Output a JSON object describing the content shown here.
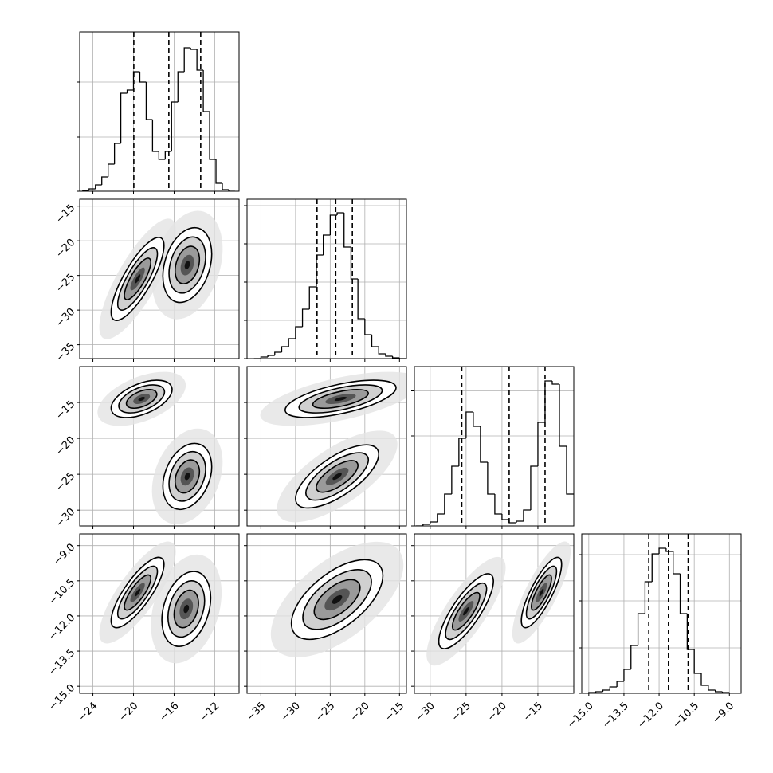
{
  "chart_data": {
    "type": "corner",
    "grid": true,
    "params": [
      {
        "lim": [
          -25.3,
          -9.6
        ],
        "ticks": [
          {
            "value": -24,
            "label": "−24"
          },
          {
            "value": -20,
            "label": "−20"
          },
          {
            "value": -16,
            "label": "−16"
          },
          {
            "value": -12,
            "label": "−12"
          }
        ]
      },
      {
        "lim": [
          -37,
          -14
        ],
        "ticks": [
          {
            "value": -35,
            "label": "−35"
          },
          {
            "value": -30,
            "label": "−30"
          },
          {
            "value": -25,
            "label": "−25"
          },
          {
            "value": -20,
            "label": "−20"
          },
          {
            "value": -15,
            "label": "−15"
          }
        ]
      },
      {
        "lim": [
          -32.2,
          -10
        ],
        "ticks": [
          {
            "value": -30,
            "label": "−30"
          },
          {
            "value": -25,
            "label": "−25"
          },
          {
            "value": -20,
            "label": "−20"
          },
          {
            "value": -15,
            "label": "−15"
          }
        ]
      },
      {
        "lim": [
          -15.3,
          -8.5
        ],
        "ticks": [
          {
            "value": -15,
            "label": "−15.0"
          },
          {
            "value": -13.5,
            "label": "−13.5"
          },
          {
            "value": -12,
            "label": "−12.0"
          },
          {
            "value": -10.5,
            "label": "−10.5"
          },
          {
            "value": -9,
            "label": "−9.0"
          }
        ]
      }
    ],
    "hists": [
      {
        "bins": [
          -25,
          -24.375,
          -23.75,
          -23.125,
          -22.5,
          -21.875,
          -21.25,
          -20.625,
          -20,
          -19.375,
          -18.75,
          -18.125,
          -17.5,
          -16.875,
          -16.25,
          -15.625,
          -15,
          -14.375,
          -13.75,
          -13.125,
          -12.5,
          -11.875,
          -11.25,
          -10.625,
          -10
        ],
        "counts": [
          10,
          30,
          80,
          180,
          340,
          600,
          1230,
          1270,
          1500,
          1370,
          900,
          500,
          400,
          500,
          1120,
          1500,
          1800,
          1780,
          1520,
          1000,
          400,
          100,
          20,
          0
        ],
        "ylim": [
          0,
          2000
        ],
        "yticks": [
          0,
          680,
          1370
        ],
        "quantiles": [
          -19.97,
          -16.52,
          -13.38
        ]
      },
      {
        "bins": [
          -36,
          -35,
          -34,
          -33,
          -32,
          -31,
          -30,
          -29,
          -28,
          -27,
          -26,
          -25,
          -24,
          -23,
          -22,
          -21,
          -20,
          -19,
          -18,
          -17,
          -16,
          -15,
          -14
        ],
        "counts": [
          0,
          20,
          40,
          80,
          150,
          250,
          400,
          620,
          900,
          1300,
          1550,
          1800,
          1830,
          1400,
          1000,
          500,
          300,
          150,
          60,
          30,
          10,
          0
        ],
        "ylim": [
          0,
          2000
        ],
        "yticks": [
          0,
          480,
          960,
          1440,
          1920
        ],
        "quantiles": [
          -26.9,
          -24.2,
          -21.8
        ]
      },
      {
        "bins": [
          -32,
          -31,
          -30,
          -29,
          -28,
          -27,
          -26,
          -25,
          -24,
          -23,
          -22,
          -21,
          -20,
          -19,
          -18,
          -17,
          -16,
          -15,
          -14,
          -13,
          -12,
          -11,
          -10
        ],
        "counts": [
          0,
          20,
          50,
          150,
          400,
          750,
          1100,
          1430,
          1250,
          800,
          400,
          150,
          80,
          40,
          60,
          200,
          750,
          1300,
          1820,
          1780,
          1000,
          400
        ],
        "ylim": [
          0,
          2000
        ],
        "yticks": [
          0,
          565,
          1130,
          1695
        ],
        "quantiles": [
          -25.6,
          -19.0,
          -14.0
        ]
      },
      {
        "bins": [
          -15,
          -14.7,
          -14.4,
          -14.1,
          -13.8,
          -13.5,
          -13.2,
          -12.9,
          -12.6,
          -12.3,
          -12,
          -11.7,
          -11.4,
          -11.1,
          -10.8,
          -10.5,
          -10.2,
          -9.9,
          -9.6,
          -9.3,
          -9
        ],
        "counts": [
          10,
          20,
          40,
          80,
          150,
          300,
          600,
          1000,
          1400,
          1750,
          1820,
          1780,
          1500,
          1000,
          550,
          250,
          100,
          40,
          20,
          10
        ],
        "ylim": [
          0,
          2000
        ],
        "yticks": [
          0,
          570,
          1160,
          1740
        ],
        "quantiles": [
          -12.44,
          -11.6,
          -10.76
        ]
      }
    ],
    "panels": [
      {
        "row": 1,
        "col": 0,
        "blobs": [
          {
            "center": [
              -19.6,
              -25.5
            ],
            "sx": 1.3,
            "sy": 3,
            "rho": 0.8
          },
          {
            "center": [
              -14.7,
              -23.5
            ],
            "sx": 1.2,
            "sy": 2.7,
            "rho": 0.3
          }
        ]
      },
      {
        "row": 2,
        "col": 0,
        "blobs": [
          {
            "center": [
              -19.2,
              -14.5
            ],
            "sx": 1.5,
            "sy": 1.3,
            "rho": 0.5
          },
          {
            "center": [
              -14.7,
              -25.3
            ],
            "sx": 1.2,
            "sy": 2.3,
            "rho": 0.3
          }
        ]
      },
      {
        "row": 2,
        "col": 1,
        "blobs": [
          {
            "center": [
              -23.5,
              -14.5
            ],
            "sx": 4,
            "sy": 1.3,
            "rho": 0.6
          },
          {
            "center": [
              -24,
              -25.3
            ],
            "sx": 3,
            "sy": 2.2,
            "rho": 0.7
          }
        ]
      },
      {
        "row": 3,
        "col": 0,
        "blobs": [
          {
            "center": [
              -19.6,
              -11
            ],
            "sx": 1.3,
            "sy": 0.75,
            "rho": 0.8
          },
          {
            "center": [
              -14.8,
              -11.7
            ],
            "sx": 1.2,
            "sy": 0.8,
            "rho": 0.3
          }
        ]
      },
      {
        "row": 3,
        "col": 1,
        "blobs": [
          {
            "center": [
              -24,
              -11.3
            ],
            "sx": 3.3,
            "sy": 0.85,
            "rho": 0.6
          }
        ]
      },
      {
        "row": 3,
        "col": 2,
        "blobs": [
          {
            "center": [
              -25,
              -11.8
            ],
            "sx": 1.9,
            "sy": 0.8,
            "rho": 0.8
          },
          {
            "center": [
              -14.5,
              -11
            ],
            "sx": 1.4,
            "sy": 0.75,
            "rho": 0.8
          }
        ]
      }
    ]
  }
}
